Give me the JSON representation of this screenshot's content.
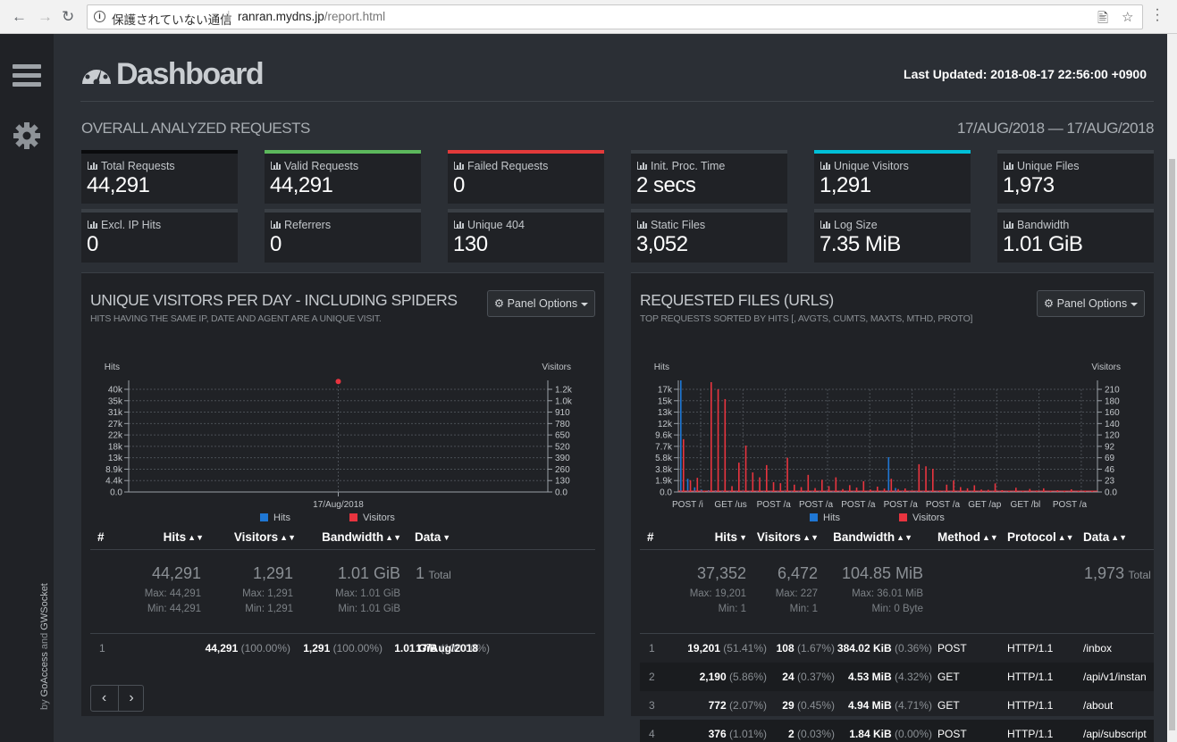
{
  "browser": {
    "security_label": "保護されていない通信",
    "url_host": "ranran.mydns.jp",
    "url_path": "/report.html"
  },
  "sidebar": {
    "byline_prefix": "by ",
    "goaccess": "GoAccess",
    "and": " and ",
    "gwsocket": "GWSocket"
  },
  "header": {
    "title": "Dashboard",
    "last_updated": "Last Updated: 2018-08-17 22:56:00 +0900"
  },
  "overall": {
    "title": "OVERALL ANALYZED REQUESTS",
    "date_range": "17/AUG/2018 — 17/AUG/2018"
  },
  "cards": [
    {
      "label": "Total Requests",
      "value": "44,291",
      "accent": "#0a0b0d"
    },
    {
      "label": "Valid Requests",
      "value": "44,291",
      "accent": "#5cb85c"
    },
    {
      "label": "Failed Requests",
      "value": "0",
      "accent": "#e33a3a"
    },
    {
      "label": "Init. Proc. Time",
      "value": "2 secs",
      "accent": "#3a3f45"
    },
    {
      "label": "Unique Visitors",
      "value": "1,291",
      "accent": "#00c0d8"
    },
    {
      "label": "Unique Files",
      "value": "1,973",
      "accent": "#3a3f45"
    },
    {
      "label": "Excl. IP Hits",
      "value": "0",
      "accent": "#3a3f45"
    },
    {
      "label": "Referrers",
      "value": "0",
      "accent": "#3a3f45"
    },
    {
      "label": "Unique 404",
      "value": "130",
      "accent": "#3a3f45"
    },
    {
      "label": "Static Files",
      "value": "3,052",
      "accent": "#3a3f45"
    },
    {
      "label": "Log Size",
      "value": "7.35 MiB",
      "accent": "#3a3f45"
    },
    {
      "label": "Bandwidth",
      "value": "1.01 GiB",
      "accent": "#3a3f45"
    }
  ],
  "visitors_panel": {
    "title": "UNIQUE VISITORS PER DAY - INCLUDING SPIDERS",
    "subtitle": "HITS HAVING THE SAME IP, DATE AND AGENT ARE A UNIQUE VISIT.",
    "options_label": "Panel Options",
    "table": {
      "headers": [
        "#",
        "Hits",
        "Visitors",
        "Bandwidth",
        "Data"
      ],
      "summary": {
        "hits": "44,291",
        "hits_max": "Max: 44,291",
        "hits_min": "Min: 44,291",
        "visitors": "1,291",
        "visitors_max": "Max: 1,291",
        "visitors_min": "Min: 1,291",
        "bandwidth": "1.01 GiB",
        "bandwidth_max": "Max: 1.01 GiB",
        "bandwidth_min": "Min: 1.01 GiB",
        "data_count": "1",
        "data_label": "Total"
      },
      "rows": [
        {
          "idx": "1",
          "hits": "44,291",
          "hits_pct": "(100.00%)",
          "visitors": "1,291",
          "visitors_pct": "(100.00%)",
          "bw": "1.01 GiB",
          "bw_pct": "(100.00%)",
          "data": "17/Aug/2018"
        }
      ]
    },
    "pager": {
      "prev": "‹",
      "next": "›"
    }
  },
  "requests_panel": {
    "title": "REQUESTED FILES (URLS)",
    "subtitle": "TOP REQUESTS SORTED BY HITS [, AVGTS, CUMTS, MAXTS, MTHD, PROTO]",
    "options_label": "Panel Options",
    "table": {
      "headers": [
        "#",
        "Hits",
        "Visitors",
        "Bandwidth",
        "Method",
        "Protocol",
        "Data"
      ],
      "summary": {
        "hits": "37,352",
        "hits_max": "Max: 19,201",
        "hits_min": "Min: 1",
        "visitors": "6,472",
        "visitors_max": "Max: 227",
        "visitors_min": "Min: 1",
        "bandwidth": "104.85 MiB",
        "bandwidth_max": "Max: 36.01 MiB",
        "bandwidth_min": "Min: 0 Byte",
        "data_count": "1,973",
        "data_label": "Total"
      },
      "rows": [
        {
          "idx": "1",
          "hits": "19,201",
          "hits_pct": "(51.41%)",
          "visitors": "108",
          "visitors_pct": "(1.67%)",
          "bw": "384.02 KiB",
          "bw_pct": "(0.36%)",
          "method": "POST",
          "protocol": "HTTP/1.1",
          "data": "/inbox"
        },
        {
          "idx": "2",
          "hits": "2,190",
          "hits_pct": "(5.86%)",
          "visitors": "24",
          "visitors_pct": "(0.37%)",
          "bw": "4.53 MiB",
          "bw_pct": "(4.32%)",
          "method": "GET",
          "protocol": "HTTP/1.1",
          "data": "/api/v1/instan"
        },
        {
          "idx": "3",
          "hits": "772",
          "hits_pct": "(2.07%)",
          "visitors": "29",
          "visitors_pct": "(0.45%)",
          "bw": "4.94 MiB",
          "bw_pct": "(4.71%)",
          "method": "GET",
          "protocol": "HTTP/1.1",
          "data": "/about"
        },
        {
          "idx": "4",
          "hits": "376",
          "hits_pct": "(1.01%)",
          "visitors": "2",
          "visitors_pct": "(0.03%)",
          "bw": "1.84 KiB",
          "bw_pct": "(0.00%)",
          "method": "POST",
          "protocol": "HTTP/1.1",
          "data": "/api/subscript"
        }
      ]
    }
  },
  "chart_data": [
    {
      "type": "line",
      "y_left_label": "Hits",
      "y_right_label": "Visitors",
      "y_left_ticks": [
        "0.0",
        "4.4k",
        "8.9k",
        "13k",
        "18k",
        "22k",
        "27k",
        "31k",
        "35k",
        "40k"
      ],
      "y_right_ticks": [
        "0.0",
        "130",
        "260",
        "390",
        "520",
        "650",
        "780",
        "910",
        "1.0k",
        "1.2k"
      ],
      "y_left_max": 44291,
      "y_right_max": 1291,
      "categories": [
        "17/Aug/2018"
      ],
      "series": [
        {
          "name": "Hits",
          "color": "#1f77d4",
          "values": [
            44291
          ]
        },
        {
          "name": "Visitors",
          "color": "#e8343f",
          "values": [
            1291
          ]
        }
      ],
      "legend": "bottom"
    },
    {
      "type": "bar",
      "y_left_label": "Hits",
      "y_right_label": "Visitors",
      "y_left_ticks": [
        "0.0",
        "1.9k",
        "3.8k",
        "5.8k",
        "7.7k",
        "9.6k",
        "12k",
        "13k",
        "15k",
        "17k"
      ],
      "y_right_ticks": [
        "0.0",
        "23",
        "46",
        "69",
        "92",
        "120",
        "140",
        "160",
        "180",
        "210"
      ],
      "y_left_max": 19201,
      "y_right_max": 227,
      "x_tick_labels": [
        "POST /i",
        "GET /us",
        "POST /a",
        "POST /a",
        "POST /a",
        "POST /a",
        "POST /a",
        "GET /ap",
        "GET /bl",
        "POST /a"
      ],
      "hits": [
        19201,
        2190,
        772,
        376,
        300,
        280,
        250,
        230,
        210,
        195,
        180,
        170,
        160,
        150,
        140,
        130,
        120,
        110,
        105,
        100,
        95,
        90,
        85,
        80,
        75,
        70,
        65,
        60,
        55,
        50
      ],
      "visitors": [
        108,
        24,
        29,
        2,
        227,
        210,
        190,
        12,
        60,
        95,
        40,
        30,
        55,
        20,
        18,
        70,
        15,
        10,
        35,
        8,
        25,
        12,
        30,
        6,
        14,
        9,
        22,
        5,
        11,
        7
      ],
      "series": [
        {
          "name": "Hits",
          "color": "#1f77d4"
        },
        {
          "name": "Visitors",
          "color": "#e8343f"
        }
      ],
      "legend": "bottom"
    }
  ]
}
